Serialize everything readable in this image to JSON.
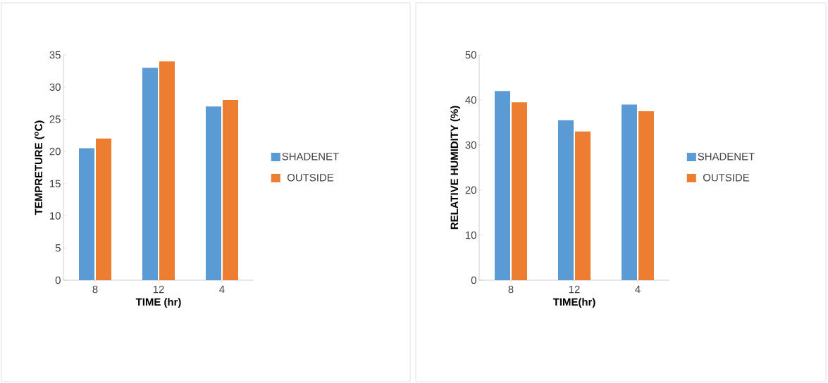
{
  "chart_data": [
    {
      "type": "bar",
      "categories": [
        "8",
        "12",
        "4"
      ],
      "xlabel": "TIME (hr)",
      "ylabel": "TEMPRETURE ($^{o}$C)",
      "ylim": [
        0,
        35
      ],
      "yticks": [
        0,
        5,
        10,
        15,
        20,
        25,
        30,
        35
      ],
      "legend": "right",
      "grid": false,
      "series": [
        {
          "name": "SHADENET",
          "color": "#5b9bd5",
          "values": [
            20.5,
            33,
            27
          ]
        },
        {
          "name": "OUTSIDE",
          "color": "#ed7d31",
          "values": [
            22,
            34,
            28
          ]
        }
      ]
    },
    {
      "type": "bar",
      "categories": [
        "8",
        "12",
        "4"
      ],
      "xlabel": "TIME(hr)",
      "ylabel": "RELATIVE HUMIDITY (%)",
      "ylim": [
        0,
        50
      ],
      "yticks": [
        0,
        10,
        20,
        30,
        40,
        50
      ],
      "legend": "right",
      "grid": false,
      "series": [
        {
          "name": "SHADENET",
          "color": "#5b9bd5",
          "values": [
            42,
            35.5,
            39
          ]
        },
        {
          "name": "OUTSIDE",
          "color": "#ed7d31",
          "values": [
            39.5,
            33,
            37.5
          ]
        }
      ]
    }
  ]
}
